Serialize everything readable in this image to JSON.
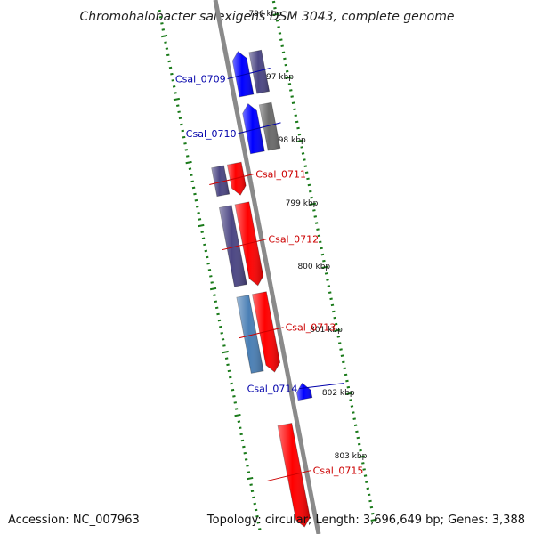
{
  "title": "Chromohalobacter salexigens DSM 3043, complete genome",
  "accession": "Accession: NC_007963",
  "summary": "Topology: circular; Length: 3,696,649 bp; Genes: 3,388",
  "scale_marks": [
    {
      "label": "796 kbp",
      "pos": 796
    },
    {
      "label": "797 kbp",
      "pos": 797
    },
    {
      "label": "798 kbp",
      "pos": 798
    },
    {
      "label": "799 kbp",
      "pos": 799
    },
    {
      "label": "800 kbp",
      "pos": 800
    },
    {
      "label": "801 kbp",
      "pos": 801
    },
    {
      "label": "802 kbp",
      "pos": 802
    },
    {
      "label": "803 kbp",
      "pos": 803
    }
  ],
  "genes": [
    {
      "id": "Csal_0709",
      "strand": "reverse",
      "start": 796.45,
      "end": 797.15,
      "color": "#0000ff",
      "cog_color": "#4b4683",
      "label_color": "#0000aa"
    },
    {
      "id": "Csal_0710",
      "strand": "reverse",
      "start": 797.28,
      "end": 798.05,
      "color": "#0000ff",
      "cog_color": "#6b6b6b",
      "label_color": "#0000aa"
    },
    {
      "id": "Csal_0711",
      "strand": "forward",
      "start": 798.15,
      "end": 798.65,
      "color": "#ff0000",
      "cog_color": "#4b4683",
      "label_color": "#cc0000"
    },
    {
      "id": "Csal_0712",
      "strand": "forward",
      "start": 798.78,
      "end": 800.08,
      "color": "#ff0000",
      "cog_color": "#4b4683",
      "label_color": "#cc0000"
    },
    {
      "id": "Csal_0713",
      "strand": "forward",
      "start": 800.2,
      "end": 801.45,
      "color": "#ff0000",
      "cog_color": "#4a7fb5",
      "label_color": "#cc0000"
    },
    {
      "id": "Csal_0714",
      "strand": "reverse",
      "start": 801.7,
      "end": 801.95,
      "color": "#0000ff",
      "cog_color": null,
      "label_color": "#0000aa"
    },
    {
      "id": "Csal_0715",
      "strand": "forward",
      "start": 802.28,
      "end": 803.9,
      "color": "#ff0000",
      "cog_color": null,
      "label_color": "#cc0000"
    }
  ],
  "colors": {
    "backbone": "#8a8a8a",
    "tick": "#1a7a1a"
  }
}
